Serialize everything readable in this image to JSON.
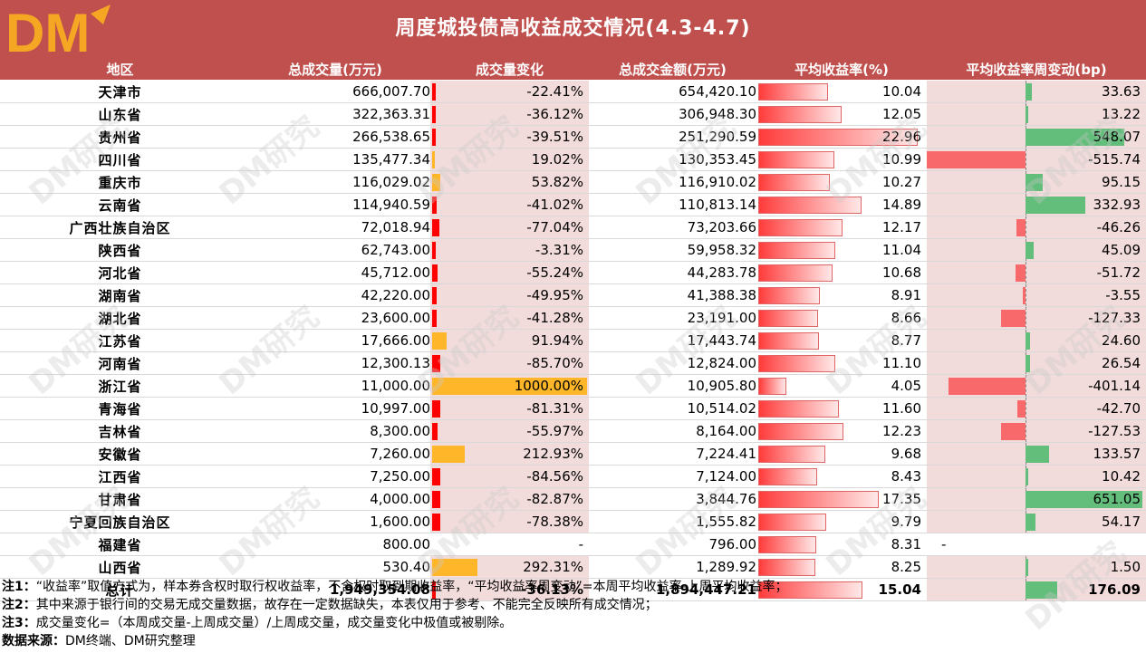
{
  "logo_text": "DM",
  "title": "周度城投债高收益成交情况(4.3-4.7)",
  "watermark": "DM研究",
  "columns": [
    "地区",
    "总成交量(万元)",
    "成交量变化",
    "总成交金额(万元)",
    "平均收益率(%)",
    "平均收益率周变动(bp)"
  ],
  "colors": {
    "header": "#c0504d",
    "bar_red": "#ff0000",
    "bar_orange": "#ffb628",
    "bar_green": "#63be7b",
    "bar_neg": "#f8696b",
    "pink_fill": "#f2dcdb"
  },
  "chart_data": {
    "type": "table",
    "rows": [
      {
        "region": "天津市",
        "volume": "666,007.70",
        "change": "-22.41%",
        "change_val": -22.41,
        "amount": "654,420.10",
        "yield": "10.04",
        "yield_val": 10.04,
        "yield_chg": "33.63",
        "yield_chg_val": 33.63
      },
      {
        "region": "山东省",
        "volume": "322,363.31",
        "change": "-36.12%",
        "change_val": -36.12,
        "amount": "306,948.30",
        "yield": "12.05",
        "yield_val": 12.05,
        "yield_chg": "13.22",
        "yield_chg_val": 13.22
      },
      {
        "region": "贵州省",
        "volume": "266,538.65",
        "change": "-39.51%",
        "change_val": -39.51,
        "amount": "251,290.59",
        "yield": "22.96",
        "yield_val": 22.96,
        "yield_chg": "548.07",
        "yield_chg_val": 548.07
      },
      {
        "region": "四川省",
        "volume": "135,477.34",
        "change": "19.02%",
        "change_val": 19.02,
        "amount": "130,353.45",
        "yield": "10.99",
        "yield_val": 10.99,
        "yield_chg": "-515.74",
        "yield_chg_val": -515.74
      },
      {
        "region": "重庆市",
        "volume": "116,029.02",
        "change": "53.82%",
        "change_val": 53.82,
        "amount": "116,910.02",
        "yield": "10.27",
        "yield_val": 10.27,
        "yield_chg": "95.15",
        "yield_chg_val": 95.15
      },
      {
        "region": "云南省",
        "volume": "114,940.59",
        "change": "-41.02%",
        "change_val": -41.02,
        "amount": "110,813.14",
        "yield": "14.89",
        "yield_val": 14.89,
        "yield_chg": "332.93",
        "yield_chg_val": 332.93
      },
      {
        "region": "广西壮族自治区",
        "volume": "72,018.94",
        "change": "-77.04%",
        "change_val": -77.04,
        "amount": "73,203.66",
        "yield": "12.17",
        "yield_val": 12.17,
        "yield_chg": "-46.26",
        "yield_chg_val": -46.26
      },
      {
        "region": "陕西省",
        "volume": "62,743.00",
        "change": "-3.31%",
        "change_val": -3.31,
        "amount": "59,958.32",
        "yield": "11.04",
        "yield_val": 11.04,
        "yield_chg": "45.09",
        "yield_chg_val": 45.09
      },
      {
        "region": "河北省",
        "volume": "45,712.00",
        "change": "-55.24%",
        "change_val": -55.24,
        "amount": "44,283.78",
        "yield": "10.68",
        "yield_val": 10.68,
        "yield_chg": "-51.72",
        "yield_chg_val": -51.72
      },
      {
        "region": "湖南省",
        "volume": "42,220.00",
        "change": "-49.95%",
        "change_val": -49.95,
        "amount": "41,388.38",
        "yield": "8.91",
        "yield_val": 8.91,
        "yield_chg": "-3.55",
        "yield_chg_val": -3.55
      },
      {
        "region": "湖北省",
        "volume": "23,600.00",
        "change": "-41.28%",
        "change_val": -41.28,
        "amount": "23,191.00",
        "yield": "8.66",
        "yield_val": 8.66,
        "yield_chg": "-127.33",
        "yield_chg_val": -127.33
      },
      {
        "region": "江苏省",
        "volume": "17,666.00",
        "change": "91.94%",
        "change_val": 91.94,
        "amount": "17,443.74",
        "yield": "8.77",
        "yield_val": 8.77,
        "yield_chg": "24.60",
        "yield_chg_val": 24.6
      },
      {
        "region": "河南省",
        "volume": "12,300.13",
        "change": "-85.70%",
        "change_val": -85.7,
        "amount": "12,824.00",
        "yield": "11.10",
        "yield_val": 11.1,
        "yield_chg": "26.54",
        "yield_chg_val": 26.54
      },
      {
        "region": "浙江省",
        "volume": "11,000.00",
        "change": "1000.00%",
        "change_val": 1000.0,
        "amount": "10,905.80",
        "yield": "4.05",
        "yield_val": 4.05,
        "yield_chg": "-401.14",
        "yield_chg_val": -401.14
      },
      {
        "region": "青海省",
        "volume": "10,997.00",
        "change": "-81.31%",
        "change_val": -81.31,
        "amount": "10,514.02",
        "yield": "11.60",
        "yield_val": 11.6,
        "yield_chg": "-42.70",
        "yield_chg_val": -42.7
      },
      {
        "region": "吉林省",
        "volume": "8,300.00",
        "change": "-55.97%",
        "change_val": -55.97,
        "amount": "8,164.00",
        "yield": "12.23",
        "yield_val": 12.23,
        "yield_chg": "-127.53",
        "yield_chg_val": -127.53
      },
      {
        "region": "安徽省",
        "volume": "7,260.00",
        "change": "212.93%",
        "change_val": 212.93,
        "amount": "7,224.41",
        "yield": "9.68",
        "yield_val": 9.68,
        "yield_chg": "133.57",
        "yield_chg_val": 133.57
      },
      {
        "region": "江西省",
        "volume": "7,250.00",
        "change": "-84.56%",
        "change_val": -84.56,
        "amount": "7,124.00",
        "yield": "8.43",
        "yield_val": 8.43,
        "yield_chg": "10.42",
        "yield_chg_val": 10.42
      },
      {
        "region": "甘肃省",
        "volume": "4,000.00",
        "change": "-82.87%",
        "change_val": -82.87,
        "amount": "3,844.76",
        "yield": "17.35",
        "yield_val": 17.35,
        "yield_chg": "651.05",
        "yield_chg_val": 651.05
      },
      {
        "region": "宁夏回族自治区",
        "volume": "1,600.00",
        "change": "-78.38%",
        "change_val": -78.38,
        "amount": "1,555.82",
        "yield": "9.79",
        "yield_val": 9.79,
        "yield_chg": "54.17",
        "yield_chg_val": 54.17
      },
      {
        "region": "福建省",
        "volume": "800.00",
        "change": "-",
        "change_val": null,
        "amount": "796.00",
        "yield": "8.31",
        "yield_val": 8.31,
        "yield_chg": "-",
        "yield_chg_val": null
      },
      {
        "region": "山西省",
        "volume": "530.40",
        "change": "292.31%",
        "change_val": 292.31,
        "amount": "1,289.92",
        "yield": "8.25",
        "yield_val": 8.25,
        "yield_chg": "1.50",
        "yield_chg_val": 1.5
      }
    ],
    "total": {
      "region": "总计",
      "volume": "1,949,354.08",
      "change": "-36.13%",
      "change_val": -36.13,
      "amount": "1,894,447.21",
      "yield": "15.04",
      "yield_val": 15.04,
      "yield_chg": "176.09",
      "yield_chg_val": 176.09
    }
  },
  "notes": [
    {
      "label": "注1：",
      "text": "“收益率”取值方式为，样本券含权时取行权收益率，不含权时取到期收益率，“平均收益率周变动”=本周平均收益率-上周平均收益率；"
    },
    {
      "label": "注2：",
      "text": "其中来源于银行间的交易无成交量数据，故存在一定数据缺失，本表仅用于参考、不能完全反映所有成交情况；"
    },
    {
      "label": "注3：",
      "text": "成交量变化=（本周成交量-上周成交量）/上周成交量，成交量变化中极值或被剔除。"
    },
    {
      "label": "数据来源：",
      "text": "DM终端、DM研究整理"
    }
  ]
}
